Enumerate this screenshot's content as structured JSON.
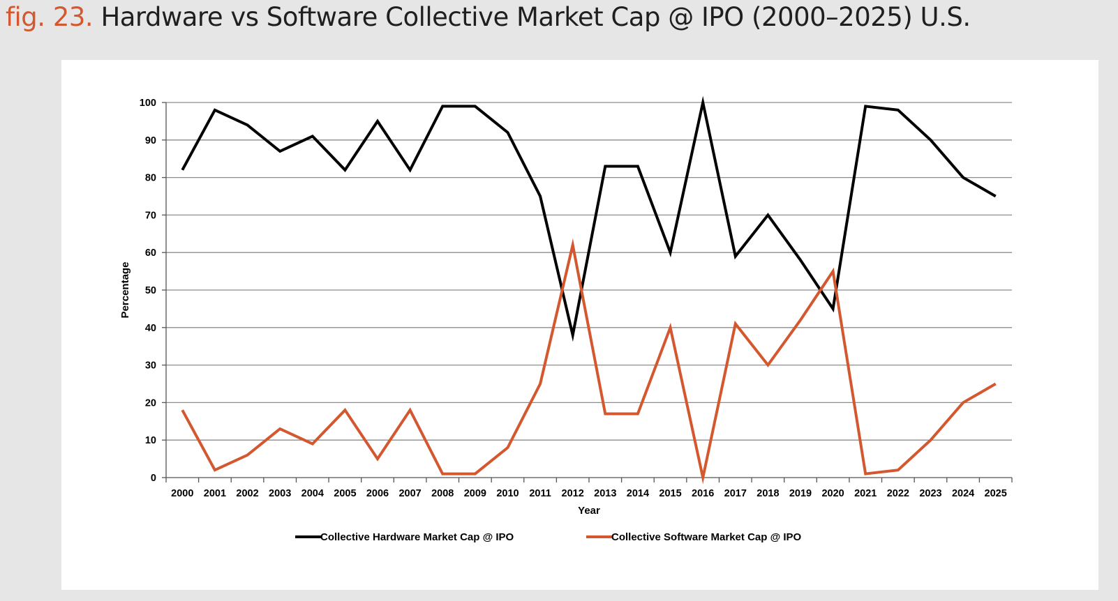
{
  "figure": {
    "number_label": "fig. 23.",
    "title": "Hardware vs Software Collective Market Cap @ IPO (2000–2025) U.S."
  },
  "colors": {
    "accent": "#d4582f",
    "hardware": "#000000",
    "software": "#d4582f",
    "grid": "#8c8c8c",
    "background": "#e6e6e6",
    "panel": "#ffffff"
  },
  "chart_data": {
    "type": "line",
    "title": "",
    "xlabel": "Year",
    "ylabel": "Percentage",
    "ylim": [
      0,
      100
    ],
    "yticks": [
      0,
      10,
      20,
      30,
      40,
      50,
      60,
      70,
      80,
      90,
      100
    ],
    "grid": true,
    "legend_position": "bottom",
    "categories": [
      "2000",
      "2001",
      "2002",
      "2003",
      "2004",
      "2005",
      "2006",
      "2007",
      "2008",
      "2009",
      "2010",
      "2011",
      "2012",
      "2013",
      "2014",
      "2015",
      "2016",
      "2017",
      "2018",
      "2019",
      "2020",
      "2021",
      "2022",
      "2023",
      "2024",
      "2025"
    ],
    "series": [
      {
        "name": "Collective Hardware Market Cap @ IPO",
        "color": "#000000",
        "values": [
          82,
          98,
          94,
          87,
          91,
          82,
          95,
          82,
          99,
          99,
          92,
          75,
          38,
          83,
          83,
          60,
          100,
          59,
          70,
          58,
          45,
          99,
          98,
          90,
          80,
          75
        ]
      },
      {
        "name": "Collective Software Market Cap @ IPO",
        "color": "#d4582f",
        "values": [
          18,
          2,
          6,
          13,
          9,
          18,
          5,
          18,
          1,
          1,
          8,
          25,
          62,
          17,
          17,
          40,
          0,
          41,
          30,
          42,
          55,
          1,
          2,
          10,
          20,
          25
        ]
      }
    ]
  }
}
